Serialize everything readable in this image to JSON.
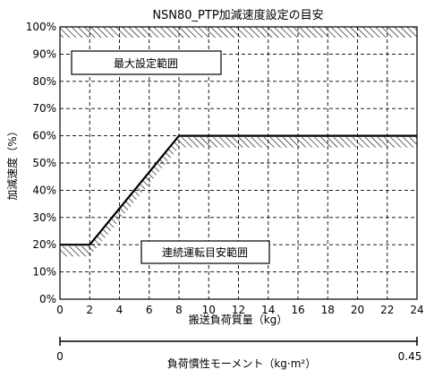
{
  "chart_data": {
    "type": "line",
    "title": "NSN80_PTP加減速度設定の目安",
    "xlabel": "搬送負荷質量（kg）",
    "ylabel": "加減速度（%）",
    "xlim": [
      0,
      24
    ],
    "ylim": [
      0,
      100
    ],
    "x_ticks": [
      "0",
      "2",
      "4",
      "6",
      "8",
      "10",
      "12",
      "14",
      "16",
      "18",
      "20",
      "22",
      "24"
    ],
    "y_ticks": [
      "0%",
      "10%",
      "20%",
      "30%",
      "40%",
      "50%",
      "60%",
      "70%",
      "80%",
      "90%",
      "100%"
    ],
    "grid": true,
    "series": [
      {
        "x": [
          0,
          2,
          8,
          24
        ],
        "y": [
          20,
          20,
          60,
          60
        ]
      }
    ],
    "annotations": [
      {
        "text": "最大設定範囲",
        "region": "upper-left"
      },
      {
        "text": "連続運転目安範囲",
        "region": "lower-middle"
      }
    ],
    "secondary_axis": {
      "label": "負荷慣性モーメント（kg·m²）",
      "min_label": "0",
      "max_label": "0.45",
      "range": [
        0,
        0.45
      ]
    },
    "colors": {
      "line": "#000000",
      "grid": "#000000",
      "background": "#ffffff"
    }
  }
}
